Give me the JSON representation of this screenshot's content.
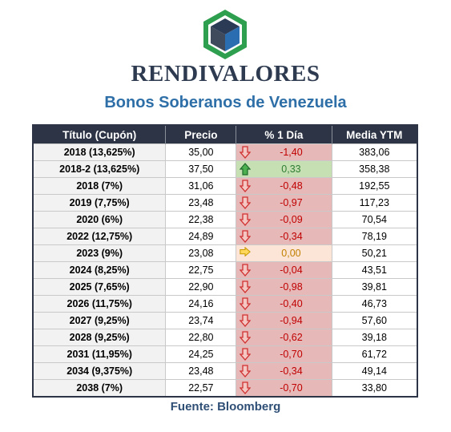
{
  "brand": "RENDIVALORES",
  "subtitle": "Bonos Soberanos de Venezuela",
  "table": {
    "headers": [
      "Título (Cupón)",
      "Precio",
      "% 1 Día",
      "Media YTM"
    ],
    "rows": [
      {
        "titulo": "2018 (13,625%)",
        "precio": "35,00",
        "cambio": "-1,40",
        "trend": "down",
        "ytm": "383,06"
      },
      {
        "titulo": "2018-2 (13,625%)",
        "precio": "37,50",
        "cambio": "0,33",
        "trend": "up",
        "ytm": "358,38"
      },
      {
        "titulo": "2018 (7%)",
        "precio": "31,06",
        "cambio": "-0,48",
        "trend": "down",
        "ytm": "192,55"
      },
      {
        "titulo": "2019 (7,75%)",
        "precio": "23,48",
        "cambio": "-0,97",
        "trend": "down",
        "ytm": "117,23"
      },
      {
        "titulo": "2020 (6%)",
        "precio": "22,38",
        "cambio": "-0,09",
        "trend": "down",
        "ytm": "70,54"
      },
      {
        "titulo": "2022 (12,75%)",
        "precio": "24,89",
        "cambio": "-0,34",
        "trend": "down",
        "ytm": "78,19"
      },
      {
        "titulo": "2023 (9%)",
        "precio": "23,08",
        "cambio": "0,00",
        "trend": "flat",
        "ytm": "50,21"
      },
      {
        "titulo": "2024 (8,25%)",
        "precio": "22,75",
        "cambio": "-0,04",
        "trend": "down",
        "ytm": "43,51"
      },
      {
        "titulo": "2025 (7,65%)",
        "precio": "22,90",
        "cambio": "-0,98",
        "trend": "down",
        "ytm": "39,81"
      },
      {
        "titulo": "2026 (11,75%)",
        "precio": "24,16",
        "cambio": "-0,40",
        "trend": "down",
        "ytm": "46,73"
      },
      {
        "titulo": "2027 (9,25%)",
        "precio": "23,74",
        "cambio": "-0,94",
        "trend": "down",
        "ytm": "57,60"
      },
      {
        "titulo": "2028 (9,25%)",
        "precio": "22,80",
        "cambio": "-0,62",
        "trend": "down",
        "ytm": "39,18"
      },
      {
        "titulo": "2031 (11,95%)",
        "precio": "24,25",
        "cambio": "-0,70",
        "trend": "down",
        "ytm": "61,72"
      },
      {
        "titulo": "2034 (9,375%)",
        "precio": "23,48",
        "cambio": "-0,34",
        "trend": "down",
        "ytm": "49,14"
      },
      {
        "titulo": "2038 (7%)",
        "precio": "22,57",
        "cambio": "-0,70",
        "trend": "down",
        "ytm": "33,80"
      }
    ]
  },
  "source": "Fuente: Bloomberg",
  "colors": {
    "header_bg": "#2d3445",
    "down_bg": "#e6b8b7",
    "up_bg": "#c6e0b4",
    "flat_bg": "#fce4d6",
    "brand_text": "#2d3a4f",
    "subtitle_text": "#2e6fa8",
    "logo_green": "#2e9e4f",
    "logo_blue": "#2a6db0"
  },
  "icons": {
    "down": "red-down-arrow-icon",
    "up": "green-up-arrow-icon",
    "flat": "yellow-right-arrow-icon"
  }
}
